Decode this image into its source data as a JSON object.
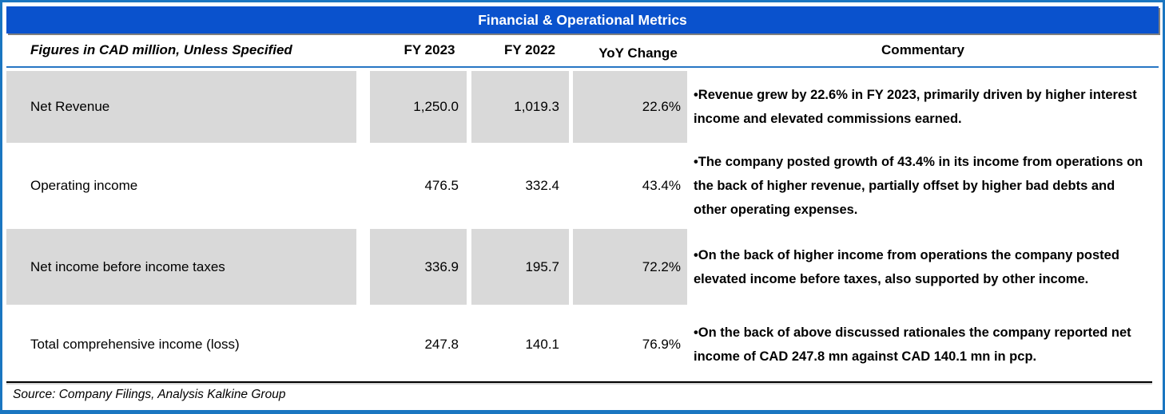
{
  "title": "Financial & Operational Metrics",
  "headers": {
    "figures": "Figures in CAD million, Unless Specified",
    "fy2023": "FY 2023",
    "fy2022": "FY 2022",
    "yoy": "YoY Change",
    "commentary": "Commentary"
  },
  "rows": [
    {
      "label": "Net Revenue",
      "fy2023": "1,250.0",
      "fy2022": "1,019.3",
      "yoy": "22.6%",
      "commentary": "•Revenue grew by 22.6% in FY 2023, primarily driven by higher interest income and elevated commissions earned."
    },
    {
      "label": "Operating income",
      "fy2023": "476.5",
      "fy2022": "332.4",
      "yoy": "43.4%",
      "commentary": "•The company posted growth of 43.4% in its income from operations on the back of higher revenue, partially offset by higher bad debts and other operating expenses."
    },
    {
      "label": "Net income before income taxes",
      "fy2023": "336.9",
      "fy2022": "195.7",
      "yoy": "72.2%",
      "commentary": "•On the back of higher income from operations the company posted elevated income before taxes, also supported by other income."
    },
    {
      "label": "Total comprehensive income (loss)",
      "fy2023": "247.8",
      "fy2022": "140.1",
      "yoy": "76.9%",
      "commentary": "•On the back of above discussed rationales the company reported net income of CAD 247.8 mn against  CAD 140.1 mn in pcp."
    }
  ],
  "source": "Source: Company Filings, Analysis Kalkine Group",
  "colors": {
    "title_bar": "#0a52cd",
    "frame_border": "#1a76c1",
    "row_shade": "#d9d9d9",
    "header_divider": "#2776c4",
    "text": "#000000"
  }
}
